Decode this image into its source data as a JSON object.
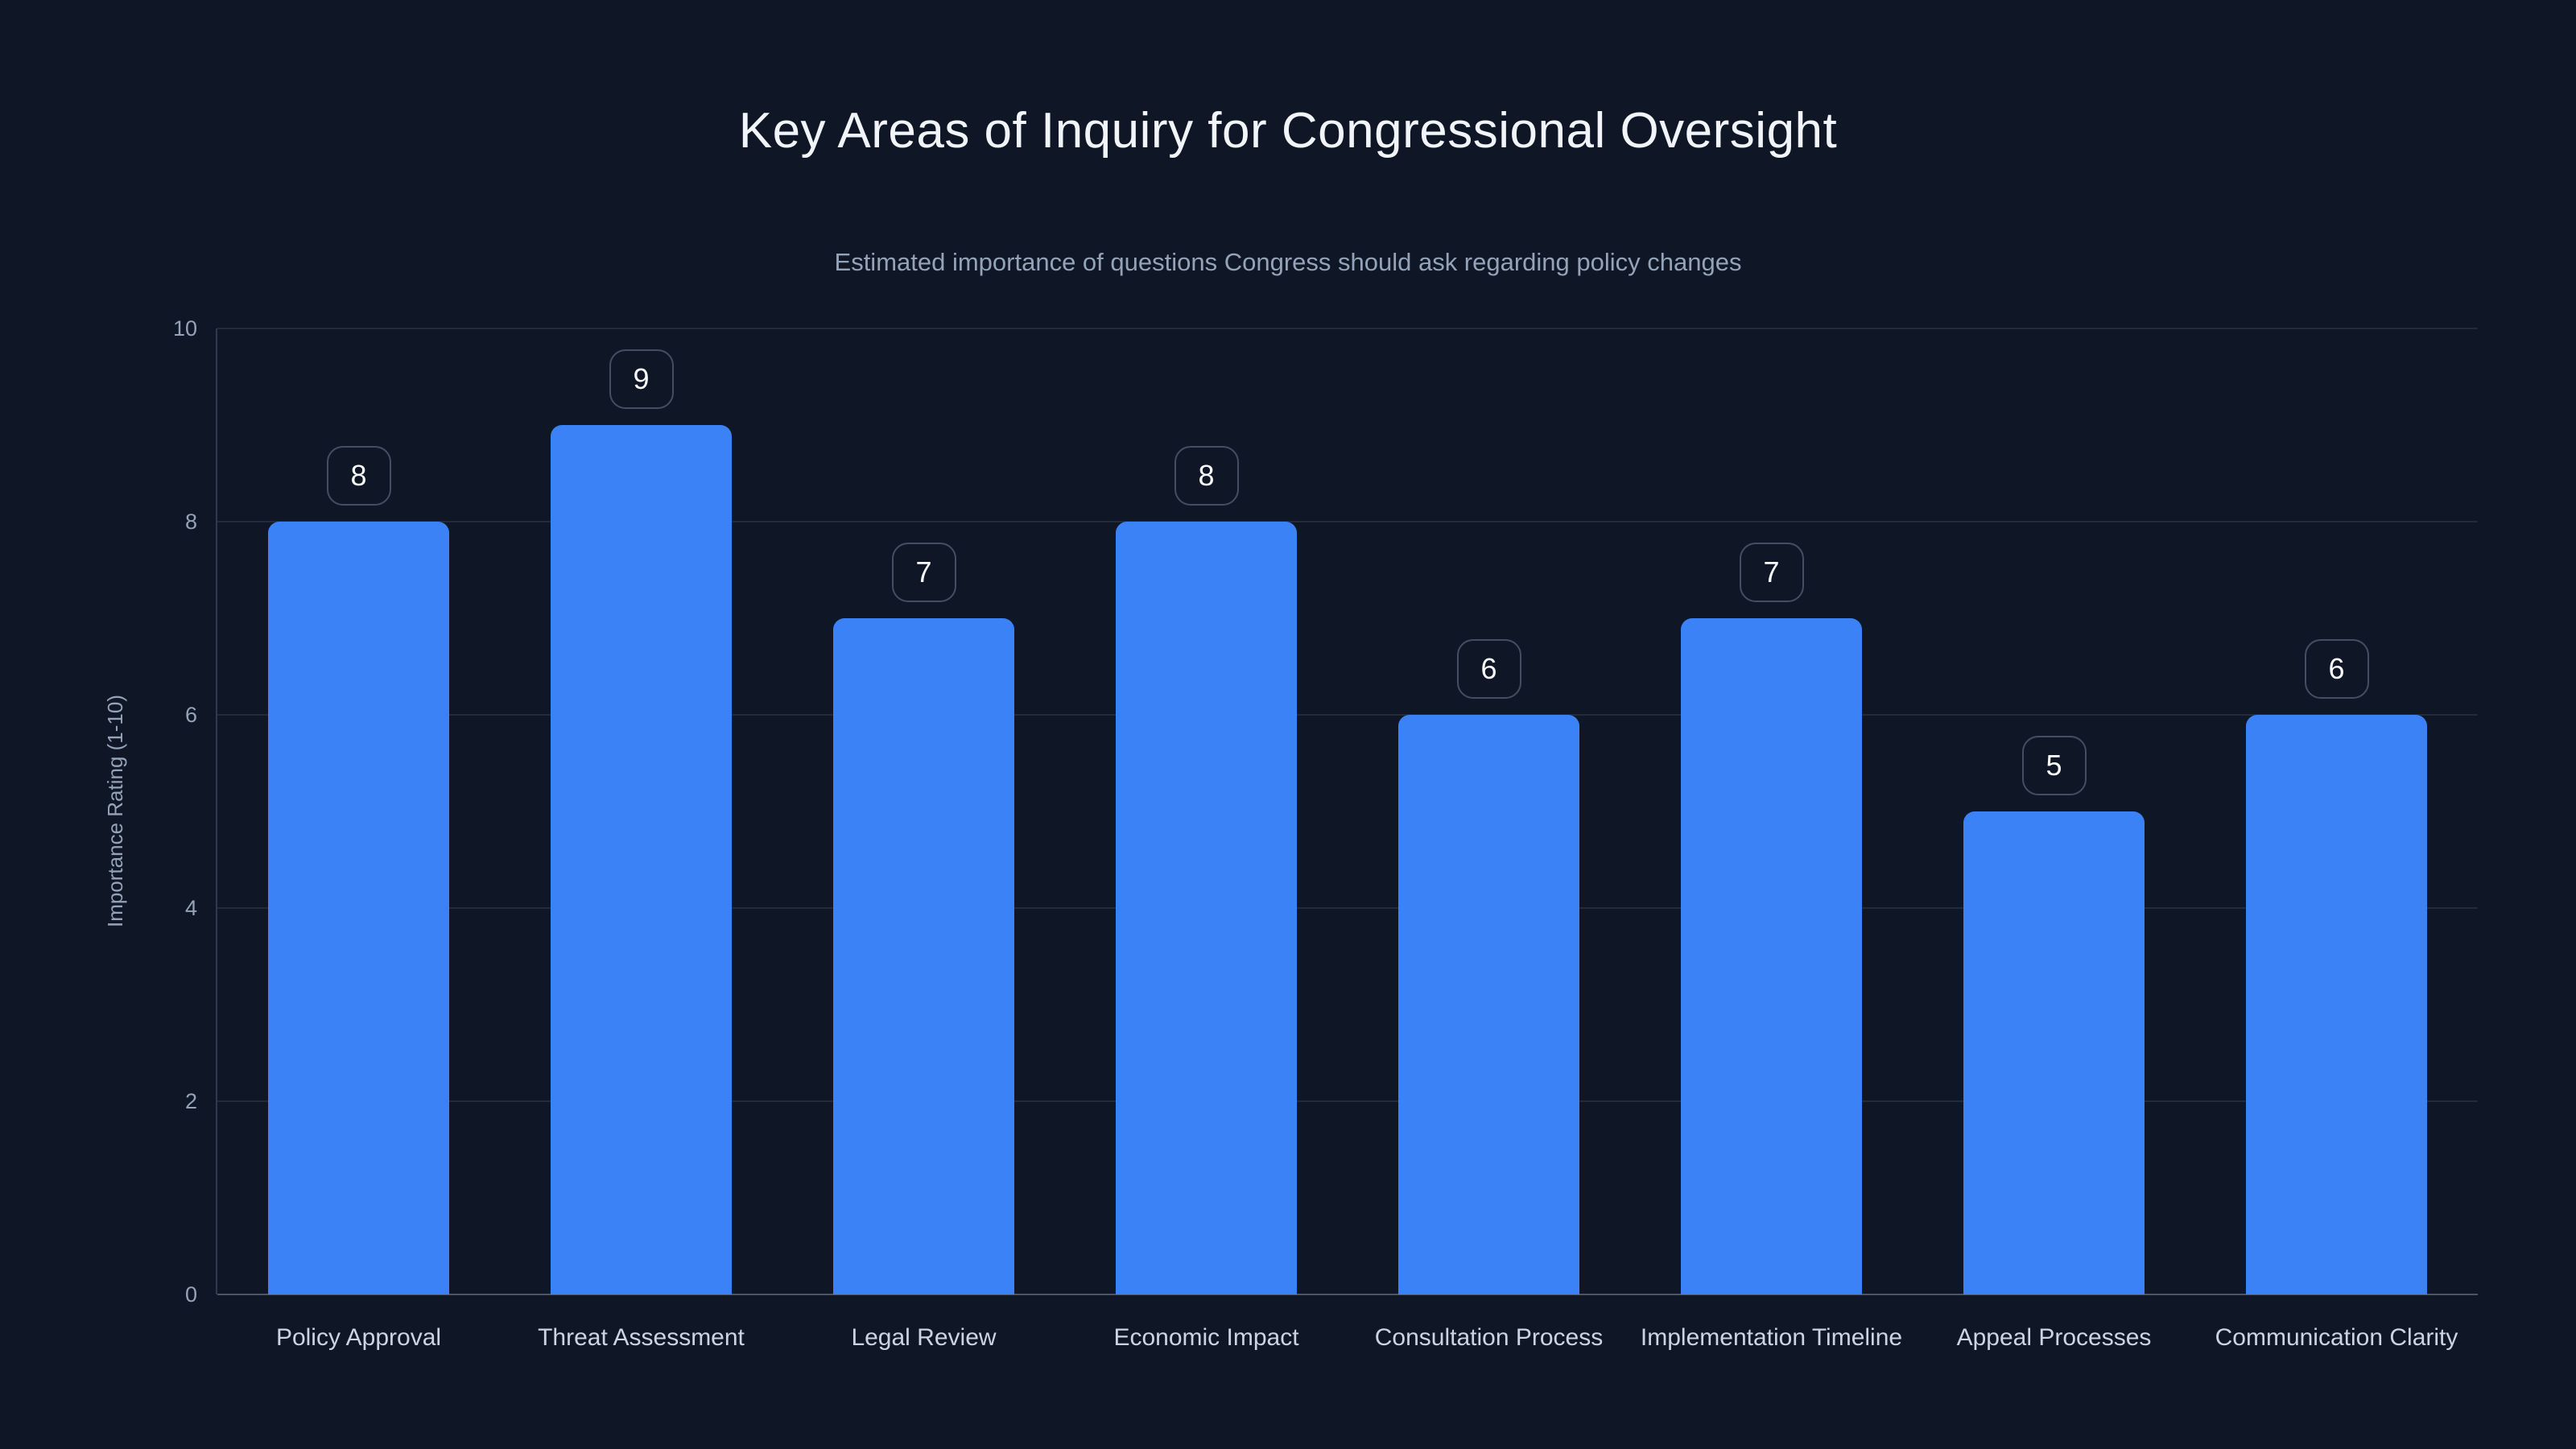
{
  "chart_data": {
    "type": "bar",
    "title": "Key Areas of Inquiry for Congressional Oversight",
    "subtitle": "Estimated importance of questions Congress should ask regarding policy changes",
    "ylabel": "Importance Rating (1-10)",
    "categories": [
      "Policy Approval",
      "Threat Assessment",
      "Legal Review",
      "Economic Impact",
      "Consultation Process",
      "Implementation Timeline",
      "Appeal Processes",
      "Communication Clarity"
    ],
    "values": [
      8,
      9,
      7,
      8,
      6,
      7,
      5,
      6
    ],
    "ylim": [
      0,
      10
    ],
    "yticks": [
      0,
      2,
      4,
      6,
      8,
      10
    ],
    "grid": true,
    "legend_position": "none",
    "colors": {
      "background": "#0f1726",
      "bar": "#3b82f6",
      "title": "#f1f5f9",
      "subtitle": "#94a3b8",
      "tick_label": "#94a3b8",
      "category_label": "#cbd5e1",
      "badge_text": "#f8fafc",
      "badge_border": "rgba(148,163,184,0.4)",
      "gridline": "rgba(148,163,184,0.15)"
    }
  }
}
